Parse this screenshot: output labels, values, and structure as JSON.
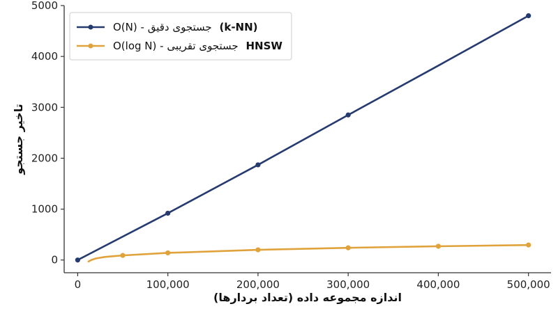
{
  "chart_data": {
    "type": "line",
    "title": "",
    "xlabel": "اندازه مجموعه داده (تعداد بردارها)",
    "ylabel": "تاخیر جستجو",
    "xlim": [
      -15000,
      525000
    ],
    "ylim": [
      -250,
      5000
    ],
    "x_ticks": [
      0,
      100000,
      200000,
      300000,
      400000,
      500000
    ],
    "x_tick_labels": [
      "0",
      "100,000",
      "200,000",
      "300,000",
      "400,000",
      "500,000"
    ],
    "y_ticks": [
      0,
      1000,
      2000,
      3000,
      4000,
      5000
    ],
    "y_tick_labels": [
      "0",
      "1000",
      "2000",
      "3000",
      "4000",
      "5000"
    ],
    "grid": false,
    "legend_position": "top-left",
    "series": [
      {
        "name": "O(N) - جستجوی دقیق (k-NN)",
        "legend_plain": "O(N) - جستجوی دقیق",
        "legend_bold": "(k-NN)",
        "color": "#253a6e",
        "x": [
          0,
          100000,
          200000,
          300000,
          400000,
          500000
        ],
        "values": [
          0,
          920,
          1870,
          2850,
          3820,
          4800
        ],
        "markers_x": [
          0,
          100000,
          200000,
          300000,
          500000
        ],
        "markers_y": [
          0,
          920,
          1870,
          2850,
          4800
        ]
      },
      {
        "name": "O(log N) - جستجوی تقریبی HNSW",
        "legend_plain": "O(log N) - جستجوی تقریبی",
        "legend_bold": "HNSW",
        "color": "#e0a23a",
        "x": [
          12000,
          15000,
          20000,
          30000,
          40000,
          50000,
          100000,
          200000,
          300000,
          400000,
          500000
        ],
        "values": [
          -30,
          0,
          30,
          60,
          75,
          90,
          140,
          200,
          240,
          270,
          295
        ],
        "markers_x": [
          50000,
          100000,
          200000,
          300000,
          400000,
          500000
        ],
        "markers_y": [
          90,
          140,
          200,
          240,
          270,
          295
        ]
      }
    ]
  }
}
